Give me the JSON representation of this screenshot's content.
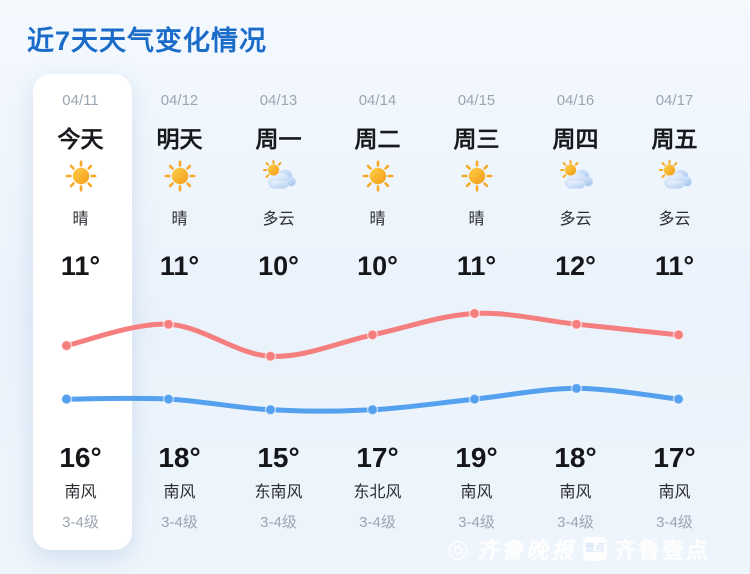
{
  "header": {
    "title": "近7天天气变化情况"
  },
  "days": [
    {
      "date": "04/11",
      "day": "今天",
      "icon": "sun-icon",
      "weather": "晴",
      "temp_low": "11°",
      "temp_high": "16°",
      "wind": "南风",
      "wind_level": "3-4级",
      "today": true
    },
    {
      "date": "04/12",
      "day": "明天",
      "icon": "sun-icon",
      "weather": "晴",
      "temp_low": "11°",
      "temp_high": "18°",
      "wind": "南风",
      "wind_level": "3-4级",
      "today": false
    },
    {
      "date": "04/13",
      "day": "周一",
      "icon": "sun-cloud-icon",
      "weather": "多云",
      "temp_low": "10°",
      "temp_high": "15°",
      "wind": "东南风",
      "wind_level": "3-4级",
      "today": false
    },
    {
      "date": "04/14",
      "day": "周二",
      "icon": "sun-icon",
      "weather": "晴",
      "temp_low": "10°",
      "temp_high": "17°",
      "wind": "东北风",
      "wind_level": "3-4级",
      "today": false
    },
    {
      "date": "04/15",
      "day": "周三",
      "icon": "sun-icon",
      "weather": "晴",
      "temp_low": "11°",
      "temp_high": "19°",
      "wind": "南风",
      "wind_level": "3-4级",
      "today": false
    },
    {
      "date": "04/16",
      "day": "周四",
      "icon": "sun-cloud-icon",
      "weather": "多云",
      "temp_low": "12°",
      "temp_high": "18°",
      "wind": "南风",
      "wind_level": "3-4级",
      "today": false
    },
    {
      "date": "04/17",
      "day": "周五",
      "icon": "sun-cloud-icon",
      "weather": "多云",
      "temp_low": "11°",
      "temp_high": "17°",
      "wind": "南风",
      "wind_level": "3-4级",
      "today": false
    }
  ],
  "chart_data": {
    "type": "line",
    "x_labels": [
      "04/11",
      "04/12",
      "04/13",
      "04/14",
      "04/15",
      "04/16",
      "04/17"
    ],
    "series": [
      {
        "name": "bottom-row temps (red line)",
        "color": "#f57f7f",
        "values": [
          16,
          18,
          15,
          17,
          19,
          18,
          17
        ]
      },
      {
        "name": "top-row temps (blue line)",
        "color": "#55a0ef",
        "values": [
          11,
          11,
          10,
          10,
          11,
          12,
          11
        ]
      }
    ],
    "unit": "°",
    "grid": false,
    "legend": "none",
    "axes_visible": false,
    "ylim": [
      9,
      21
    ]
  },
  "watermark": {
    "logo_glyph": "◎",
    "brand1": "齐鲁晚报",
    "badge": "壹点",
    "brand2": "齐鲁壹点"
  },
  "colors": {
    "accent_blue": "#1b6cc8",
    "line_red": "#f57f7f",
    "line_blue": "#55a0ef",
    "background": "#edf4fb",
    "card": "#ffffff",
    "text_dark": "#17191c",
    "text_gray": "#9ba6b2"
  }
}
